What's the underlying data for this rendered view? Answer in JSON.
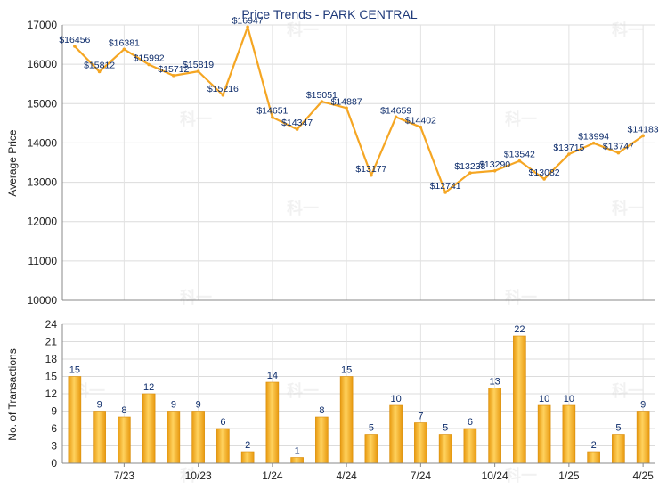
{
  "chart_data": [
    {
      "type": "line",
      "title": "Price Trends - PARK CENTRAL",
      "ylabel": "Average Price",
      "ylim": [
        10000,
        17000
      ],
      "yticks": [
        10000,
        11000,
        12000,
        13000,
        14000,
        15000,
        16000,
        17000
      ],
      "grid": true,
      "values": [
        16456,
        15812,
        16381,
        15992,
        15712,
        15819,
        15216,
        16947,
        14651,
        14347,
        15051,
        14887,
        13177,
        14659,
        14402,
        12741,
        13238,
        13290,
        13542,
        13082,
        13715,
        13994,
        13747,
        14183
      ],
      "point_labels": [
        "$16456",
        "$15812",
        "$16381",
        "$15992",
        "$15712",
        "$15819",
        "$15216",
        "$16947",
        "$14651",
        "$14347",
        "$15051",
        "$14887",
        "$13177",
        "$14659",
        "$14402",
        "$12741",
        "$13238",
        "$13290",
        "$13542",
        "$13082",
        "$13715",
        "$13994",
        "$13747",
        "$14183"
      ],
      "color": "#f5a623"
    },
    {
      "type": "bar",
      "ylabel": "No. of Transactions",
      "ylim": [
        0,
        24
      ],
      "yticks": [
        0,
        3,
        6,
        9,
        12,
        15,
        18,
        21,
        24
      ],
      "grid": true,
      "values": [
        15,
        9,
        8,
        12,
        9,
        9,
        6,
        2,
        14,
        1,
        8,
        15,
        5,
        10,
        7,
        5,
        6,
        13,
        22,
        10,
        10,
        2,
        5,
        9
      ],
      "xtick_labels": [
        "7/23",
        "10/23",
        "1/24",
        "4/24",
        "7/24",
        "10/24",
        "1/25",
        "4/25"
      ],
      "color": "#f5a623"
    }
  ],
  "watermark": "科一"
}
